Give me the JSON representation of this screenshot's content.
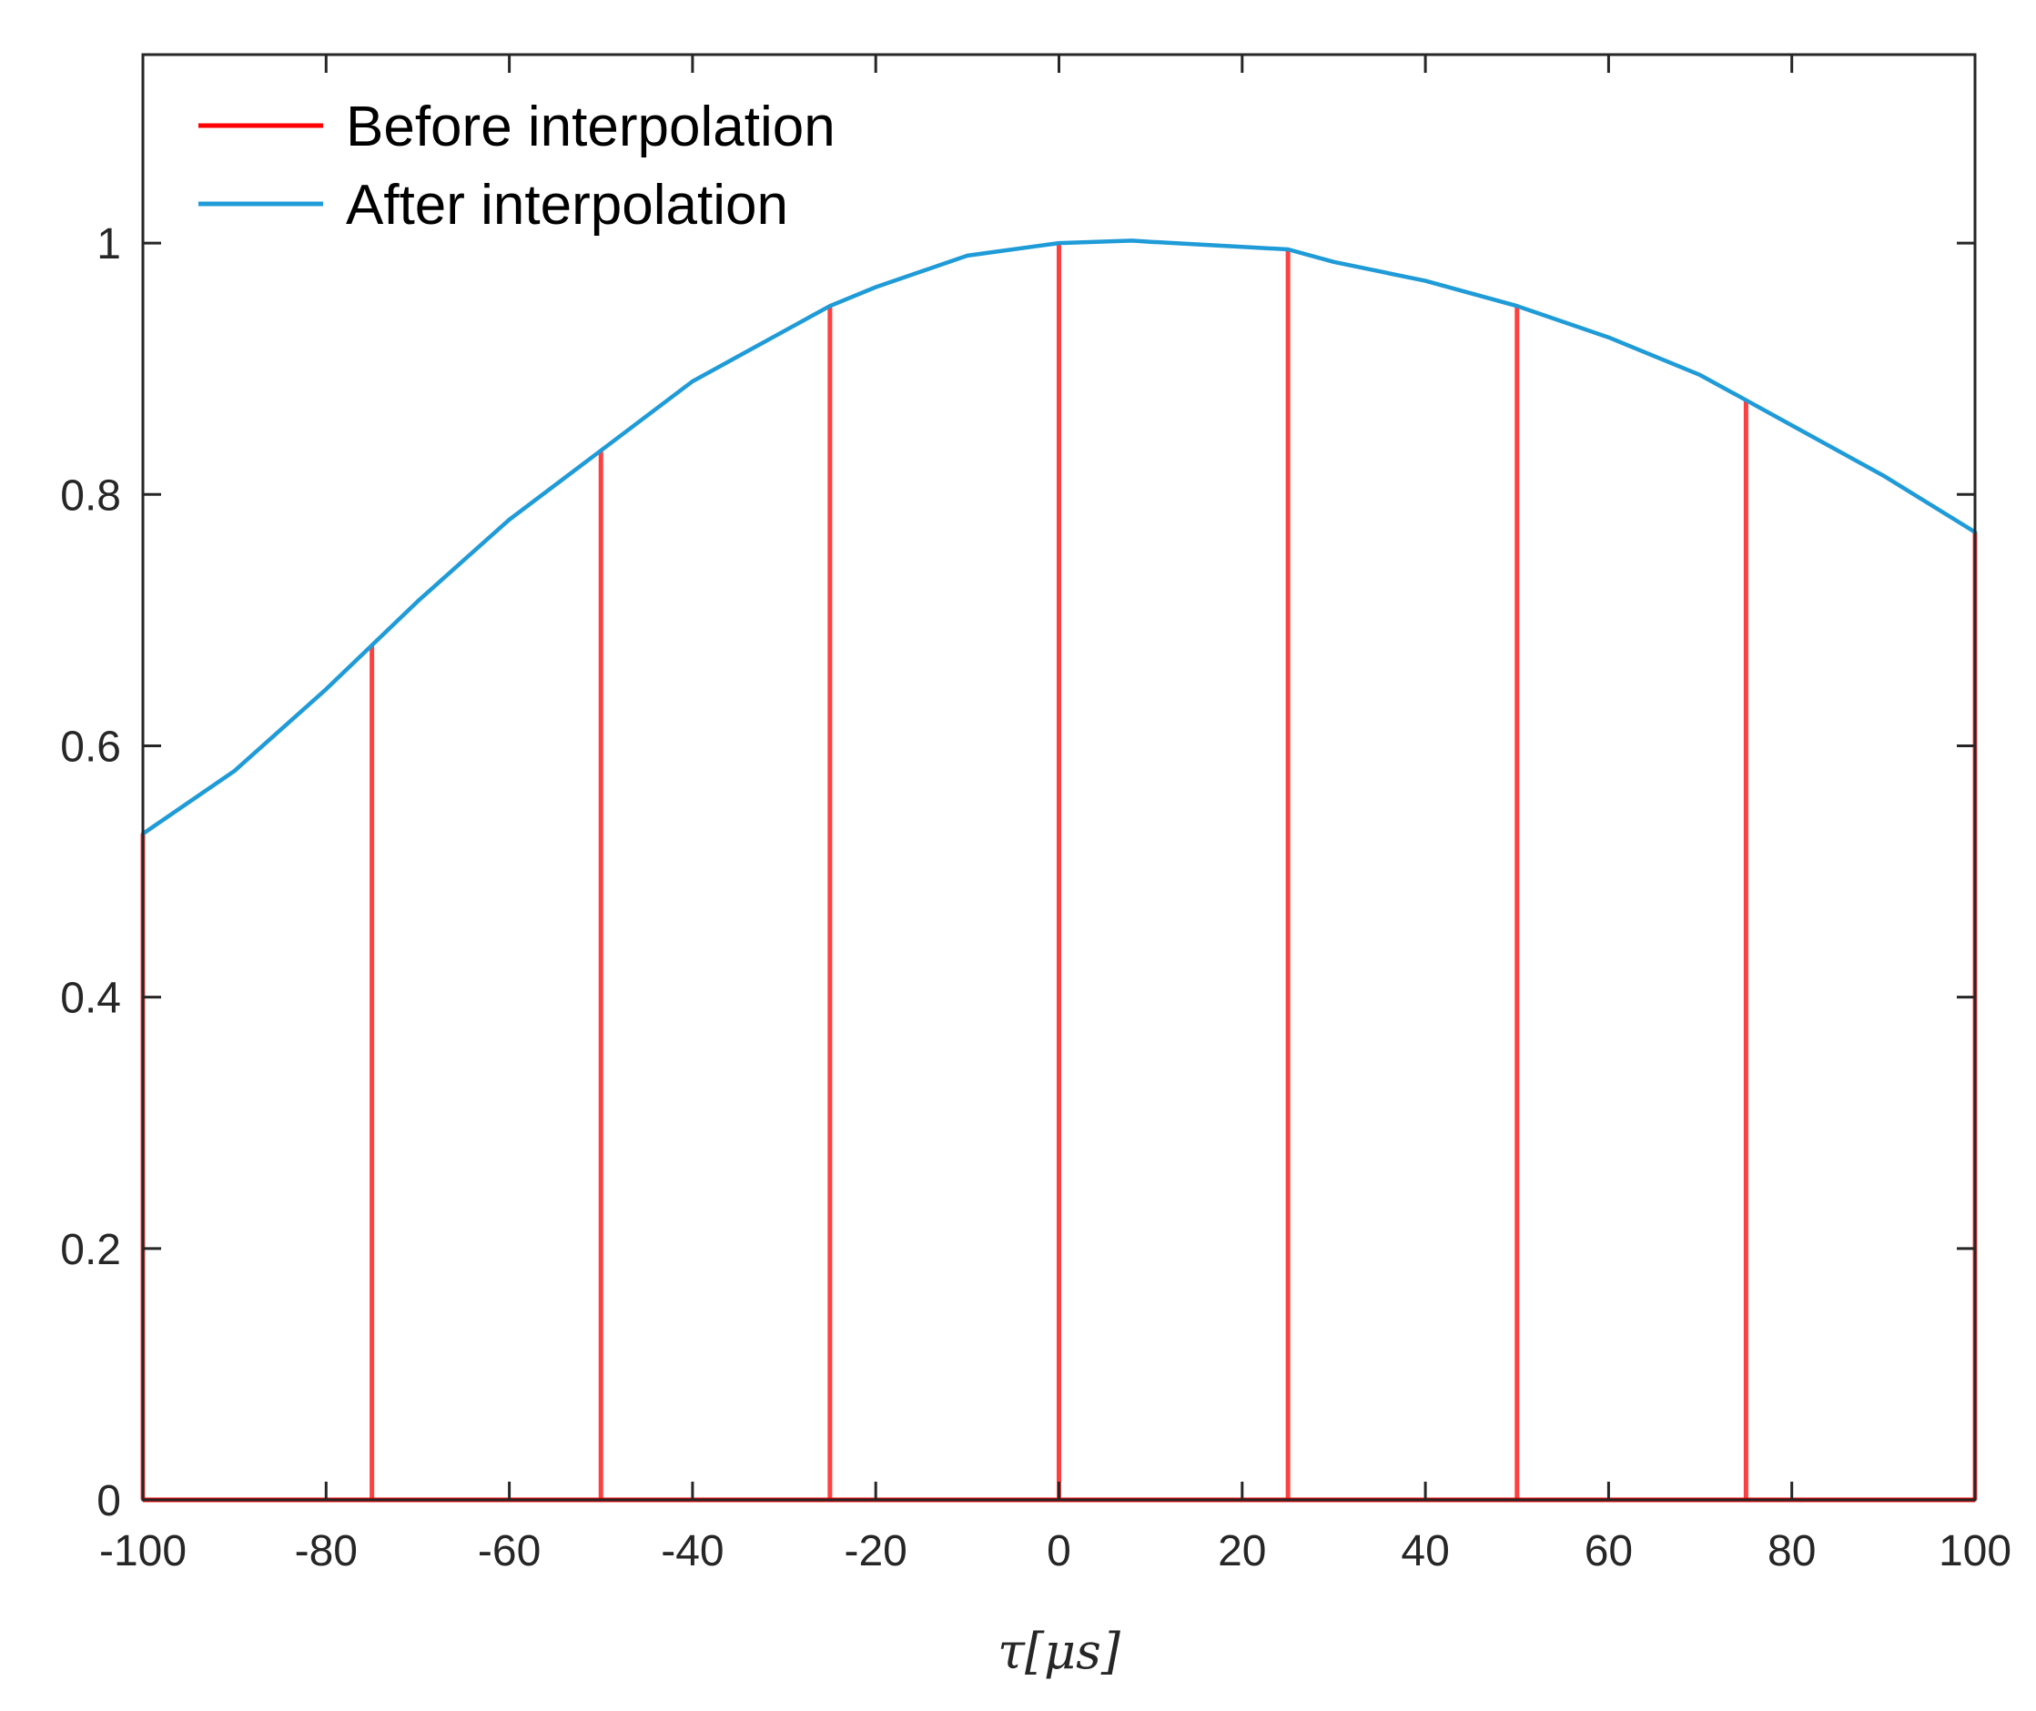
{
  "chart_data": {
    "type": "line",
    "xlabel": "τ[μs]",
    "ylabel": "",
    "xlim": [
      -100,
      100
    ],
    "ylim": [
      0,
      1.15
    ],
    "xticks": [
      -100,
      -80,
      -60,
      -40,
      -20,
      0,
      20,
      40,
      60,
      80,
      100
    ],
    "xtick_labels": [
      "-100",
      "-80",
      "-60",
      "-40",
      "-20",
      "0",
      "20",
      "40",
      "60",
      "80",
      "100"
    ],
    "yticks": [
      0,
      0.2,
      0.4,
      0.6,
      0.8,
      1
    ],
    "ytick_labels": [
      "0",
      "0.2",
      "0.4",
      "0.6",
      "0.8",
      "1"
    ],
    "grid": false,
    "legend_position": "top-left",
    "series": [
      {
        "name": "Before interpolation",
        "kind": "stem",
        "color": "#ff0000",
        "x": [
          -100,
          -75,
          -50,
          -25,
          0,
          25,
          50,
          75,
          100
        ],
        "y": [
          0.53,
          0.68,
          0.835,
          0.95,
          1.0,
          0.995,
          0.95,
          0.875,
          0.77
        ]
      },
      {
        "name": "After interpolation",
        "kind": "line",
        "color": "#1f9bd7",
        "x": [
          -100,
          -90,
          -80,
          -75,
          -70,
          -60,
          -50,
          -40,
          -30,
          -25,
          -20,
          -10,
          0,
          8,
          10,
          20,
          25,
          30,
          40,
          50,
          60,
          70,
          75,
          80,
          90,
          100
        ],
        "y": [
          0.53,
          0.58,
          0.645,
          0.68,
          0.715,
          0.78,
          0.835,
          0.89,
          0.93,
          0.95,
          0.965,
          0.99,
          1.0,
          1.002,
          1.001,
          0.997,
          0.995,
          0.985,
          0.97,
          0.95,
          0.925,
          0.895,
          0.875,
          0.855,
          0.815,
          0.77
        ]
      }
    ]
  }
}
